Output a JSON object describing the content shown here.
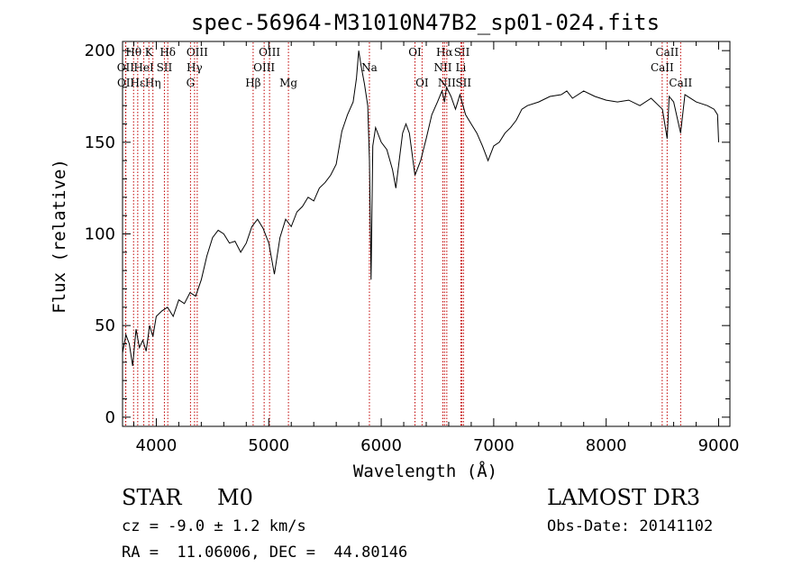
{
  "chart_data": {
    "type": "line",
    "title": "spec-56964-M31010N47B2_sp01-024.fits",
    "xlabel": "Wavelength (Å)",
    "ylabel": "Flux (relative)",
    "xlim": [
      3700,
      9100
    ],
    "ylim": [
      -5,
      205
    ],
    "xticks": [
      4000,
      5000,
      6000,
      7000,
      8000,
      9000
    ],
    "yticks": [
      0,
      50,
      100,
      150,
      200
    ],
    "grid": false,
    "series": [
      {
        "name": "spectrum",
        "x": [
          3700,
          3730,
          3760,
          3790,
          3820,
          3850,
          3880,
          3910,
          3940,
          3970,
          4000,
          4050,
          4100,
          4150,
          4200,
          4250,
          4300,
          4350,
          4400,
          4450,
          4500,
          4550,
          4600,
          4650,
          4700,
          4750,
          4800,
          4850,
          4900,
          4950,
          5000,
          5050,
          5100,
          5150,
          5200,
          5250,
          5300,
          5350,
          5400,
          5450,
          5500,
          5550,
          5600,
          5650,
          5700,
          5750,
          5780,
          5800,
          5820,
          5850,
          5880,
          5895,
          5910,
          5925,
          5950,
          6000,
          6050,
          6100,
          6130,
          6160,
          6190,
          6220,
          6250,
          6300,
          6350,
          6400,
          6450,
          6500,
          6540,
          6563,
          6580,
          6620,
          6660,
          6700,
          6750,
          6800,
          6850,
          6900,
          6950,
          7000,
          7050,
          7100,
          7150,
          7200,
          7250,
          7300,
          7400,
          7500,
          7600,
          7650,
          7700,
          7800,
          7900,
          8000,
          8100,
          8200,
          8300,
          8400,
          8500,
          8542,
          8560,
          8600,
          8662,
          8700,
          8800,
          8900,
          8960,
          8990,
          9000
        ],
        "y": [
          35,
          45,
          40,
          28,
          48,
          38,
          42,
          36,
          50,
          44,
          55,
          58,
          60,
          55,
          64,
          62,
          68,
          66,
          75,
          88,
          98,
          102,
          100,
          95,
          96,
          90,
          95,
          104,
          108,
          103,
          95,
          78,
          98,
          108,
          104,
          112,
          115,
          120,
          118,
          125,
          128,
          132,
          138,
          156,
          165,
          172,
          185,
          200,
          192,
          182,
          170,
          140,
          75,
          148,
          158,
          150,
          146,
          135,
          125,
          140,
          155,
          160,
          155,
          132,
          140,
          152,
          165,
          172,
          178,
          172,
          180,
          175,
          168,
          176,
          165,
          160,
          155,
          148,
          140,
          148,
          150,
          155,
          158,
          162,
          168,
          170,
          172,
          175,
          176,
          178,
          174,
          178,
          175,
          173,
          172,
          173,
          170,
          174,
          168,
          152,
          175,
          172,
          155,
          176,
          172,
          170,
          168,
          165,
          150
        ]
      }
    ],
    "lines": [
      {
        "label": "Hθ",
        "lambda": 3798,
        "row": 1
      },
      {
        "label": "OII",
        "lambda": 3727,
        "row": 2
      },
      {
        "label": "OII",
        "lambda": 3729,
        "row": 3
      },
      {
        "label": "Hε",
        "lambda": 3835,
        "row": 3
      },
      {
        "label": "HeI",
        "lambda": 3889,
        "row": 2
      },
      {
        "label": "K",
        "lambda": 3934,
        "row": 1
      },
      {
        "label": "Hη",
        "lambda": 3970,
        "row": 3
      },
      {
        "label": "SII",
        "lambda": 4072,
        "row": 2
      },
      {
        "label": "Hδ",
        "lambda": 4102,
        "row": 1
      },
      {
        "label": "OIII",
        "lambda": 4364,
        "row": 1
      },
      {
        "label": "Hγ",
        "lambda": 4340,
        "row": 2
      },
      {
        "label": "G",
        "lambda": 4304,
        "row": 3
      },
      {
        "label": "Hβ",
        "lambda": 4861,
        "row": 3
      },
      {
        "label": "OIII",
        "lambda": 5007,
        "row": 1
      },
      {
        "label": "OIII",
        "lambda": 4959,
        "row": 2
      },
      {
        "label": "Mg",
        "lambda": 5175,
        "row": 3
      },
      {
        "label": "Na",
        "lambda": 5895,
        "row": 2
      },
      {
        "label": "OI",
        "lambda": 6300,
        "row": 1
      },
      {
        "label": "OI",
        "lambda": 6363,
        "row": 3
      },
      {
        "label": "Hα",
        "lambda": 6563,
        "row": 1
      },
      {
        "label": "NII",
        "lambda": 6548,
        "row": 2
      },
      {
        "label": "NII",
        "lambda": 6583,
        "row": 3
      },
      {
        "label": "SII",
        "lambda": 6717,
        "row": 1
      },
      {
        "label": "Li",
        "lambda": 6708,
        "row": 2
      },
      {
        "label": "SII",
        "lambda": 6731,
        "row": 3
      },
      {
        "label": "CaII",
        "lambda": 8542,
        "row": 1
      },
      {
        "label": "CaII",
        "lambda": 8498,
        "row": 2
      },
      {
        "label": "CaII",
        "lambda": 8662,
        "row": 3
      }
    ]
  },
  "info": {
    "class": "STAR",
    "subclass": "M0",
    "redshift": "cz = -9.0 ± 1.2 km/s",
    "coords": "RA =  11.06006, DEC =  44.80146",
    "survey": "LAMOST DR3",
    "obsdate": "Obs-Date: 20141102"
  }
}
